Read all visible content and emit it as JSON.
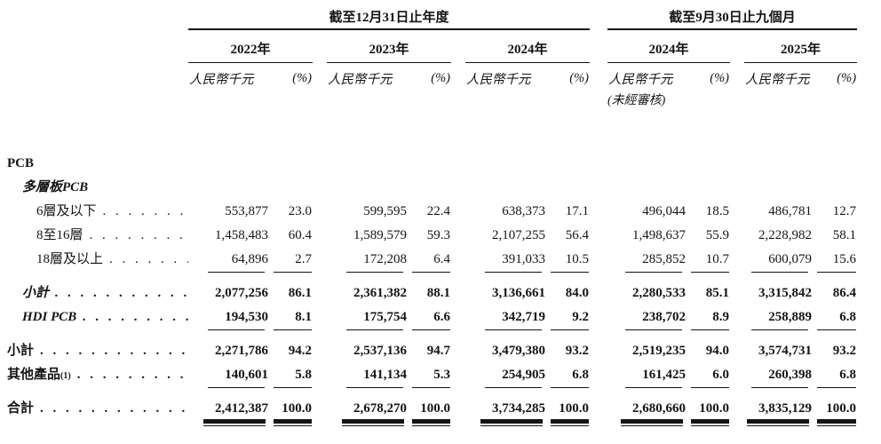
{
  "table": {
    "sections": [
      {
        "title": "截至12月31日止年度",
        "years": [
          "2022年",
          "2023年",
          "2024年"
        ]
      },
      {
        "title": "截至9月30日止九個月",
        "years": [
          "2024年",
          "2025年"
        ]
      }
    ],
    "column_headers": {
      "money": "人民幣千元",
      "pct": "(%)",
      "unaudited": "(未經審核)"
    },
    "rows": [
      {
        "label": "PCB",
        "indent": 0,
        "bold": true,
        "dots": false,
        "values": null
      },
      {
        "label": "多層板PCB",
        "indent": 1,
        "bold": true,
        "italic": true,
        "dots": false,
        "values": null
      },
      {
        "label": "6層及以下",
        "indent": 2,
        "dots": true,
        "values": [
          "553,877",
          "23.0",
          "599,595",
          "22.4",
          "638,373",
          "17.1",
          "496,044",
          "18.5",
          "486,781",
          "12.7"
        ]
      },
      {
        "label": "8至16層",
        "indent": 2,
        "dots": true,
        "values": [
          "1,458,483",
          "60.4",
          "1,589,579",
          "59.3",
          "2,107,255",
          "56.4",
          "1,498,637",
          "55.9",
          "2,228,982",
          "58.1"
        ]
      },
      {
        "label": "18層及以上",
        "indent": 2,
        "dots": true,
        "rule_after": true,
        "values": [
          "64,896",
          "2.7",
          "172,208",
          "6.4",
          "391,033",
          "10.5",
          "285,852",
          "10.7",
          "600,079",
          "15.6"
        ]
      },
      {
        "label": "小計",
        "indent": 1,
        "bold": true,
        "italic": true,
        "dots": true,
        "bold_values": true,
        "values": [
          "2,077,256",
          "86.1",
          "2,361,382",
          "88.1",
          "3,136,661",
          "84.0",
          "2,280,533",
          "85.1",
          "3,315,842",
          "86.4"
        ]
      },
      {
        "label": "HDI PCB",
        "indent": 1,
        "bold": true,
        "italic": true,
        "dots": true,
        "bold_values": true,
        "rule_after": true,
        "values": [
          "194,530",
          "8.1",
          "175,754",
          "6.6",
          "342,719",
          "9.2",
          "238,702",
          "8.9",
          "258,889",
          "6.8"
        ]
      },
      {
        "label": "小計",
        "indent": 0,
        "bold": true,
        "dots": true,
        "bold_values": true,
        "values": [
          "2,271,786",
          "94.2",
          "2,537,136",
          "94.7",
          "3,479,380",
          "93.2",
          "2,519,235",
          "94.0",
          "3,574,731",
          "93.2"
        ]
      },
      {
        "label": "其他產品",
        "sup": "(1)",
        "indent": 0,
        "bold": true,
        "dots": true,
        "bold_values": true,
        "rule_after": true,
        "values": [
          "140,601",
          "5.8",
          "141,134",
          "5.3",
          "254,905",
          "6.8",
          "161,425",
          "6.0",
          "260,398",
          "6.8"
        ]
      },
      {
        "label": "合計",
        "indent": 0,
        "bold": true,
        "dots": true,
        "bold_values": true,
        "double_rule_after": true,
        "values": [
          "2,412,387",
          "100.0",
          "2,678,270",
          "100.0",
          "3,734,285",
          "100.0",
          "2,680,660",
          "100.0",
          "3,835,129",
          "100.0"
        ]
      }
    ]
  }
}
